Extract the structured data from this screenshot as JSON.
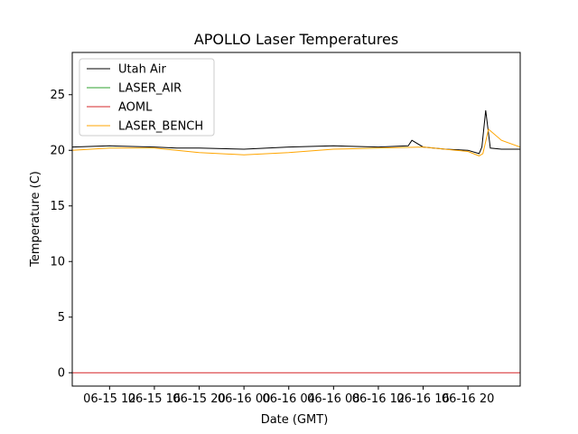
{
  "chart_data": {
    "type": "line",
    "title": "APOLLO Laser Temperatures",
    "xlabel": "Date (GMT)",
    "ylabel": "Temperature (C)",
    "xlim": [
      "2017-06-15 08:40",
      "2017-06-17 00:40"
    ],
    "ylim": [
      -1.2,
      28.8
    ],
    "xticks": [
      {
        "t": "2017-06-15 12:00",
        "label": "06-15 12"
      },
      {
        "t": "2017-06-15 16:00",
        "label": "06-15 16"
      },
      {
        "t": "2017-06-15 20:00",
        "label": "06-15 20"
      },
      {
        "t": "2017-06-16 00:00",
        "label": "06-16 00"
      },
      {
        "t": "2017-06-16 04:00",
        "label": "06-16 04"
      },
      {
        "t": "2017-06-16 08:00",
        "label": "06-16 08"
      },
      {
        "t": "2017-06-16 12:00",
        "label": "06-16 12"
      },
      {
        "t": "2017-06-16 16:00",
        "label": "06-16 16"
      },
      {
        "t": "2017-06-16 20:00",
        "label": "06-16 20"
      }
    ],
    "yticks": [
      {
        "v": 0,
        "label": "0"
      },
      {
        "v": 5,
        "label": "5"
      },
      {
        "v": 10,
        "label": "10"
      },
      {
        "v": 15,
        "label": "15"
      },
      {
        "v": 20,
        "label": "20"
      },
      {
        "v": 25,
        "label": "25"
      }
    ],
    "grid": false,
    "legend_placement": "upper-left",
    "series": [
      {
        "name": "Utah Air",
        "color": "#000000",
        "x": [
          "2017-06-15 08:40",
          "2017-06-15 12:00",
          "2017-06-15 16:00",
          "2017-06-15 18:00",
          "2017-06-15 20:00",
          "2017-06-16 00:00",
          "2017-06-16 04:00",
          "2017-06-16 08:00",
          "2017-06-16 12:00",
          "2017-06-16 14:40",
          "2017-06-16 15:00",
          "2017-06-16 16:00",
          "2017-06-16 18:00",
          "2017-06-16 20:00",
          "2017-06-16 21:00",
          "2017-06-16 21:15",
          "2017-06-16 21:35",
          "2017-06-16 22:00",
          "2017-06-16 23:00",
          "2017-06-17 00:40"
        ],
        "y": [
          20.3,
          20.4,
          20.3,
          20.2,
          20.2,
          20.1,
          20.3,
          20.4,
          20.3,
          20.4,
          20.9,
          20.3,
          20.1,
          20.0,
          19.7,
          20.3,
          23.6,
          20.2,
          20.1,
          20.1
        ]
      },
      {
        "name": "LASER_AIR",
        "color": "#2ca02c",
        "x": [],
        "y": []
      },
      {
        "name": "AOML",
        "color": "#d62728",
        "x": [
          "2017-06-15 08:40",
          "2017-06-17 00:40"
        ],
        "y": [
          0.0,
          0.0
        ]
      },
      {
        "name": "LASER_BENCH",
        "color": "#ffa500",
        "x": [
          "2017-06-15 08:40",
          "2017-06-15 12:00",
          "2017-06-15 16:00",
          "2017-06-15 20:00",
          "2017-06-16 00:00",
          "2017-06-16 04:00",
          "2017-06-16 08:00",
          "2017-06-16 12:00",
          "2017-06-16 16:00",
          "2017-06-16 20:00",
          "2017-06-16 21:00",
          "2017-06-16 21:20",
          "2017-06-16 21:50",
          "2017-06-16 23:00",
          "2017-06-17 00:40"
        ],
        "y": [
          20.0,
          20.2,
          20.2,
          19.8,
          19.6,
          19.8,
          20.1,
          20.2,
          20.3,
          19.9,
          19.5,
          19.7,
          21.9,
          20.9,
          20.3
        ]
      }
    ]
  }
}
